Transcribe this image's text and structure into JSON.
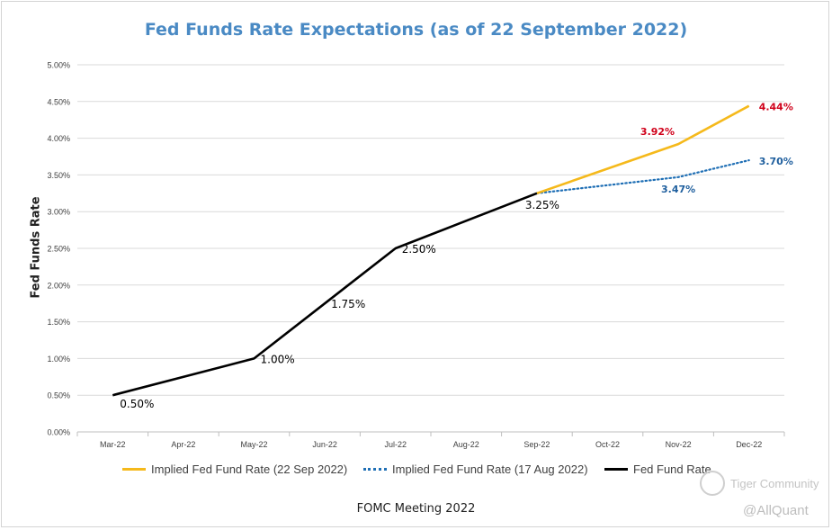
{
  "chart_data": {
    "type": "line",
    "title": "Fed Funds Rate Expectations (as of 22 September 2022)",
    "xlabel": "FOMC Meeting 2022",
    "ylabel": "Fed Funds Rate",
    "categories": [
      "Mar-22",
      "Apr-22",
      "May-22",
      "Jun-22",
      "Jul-22",
      "Aug-22",
      "Sep-22",
      "Oct-22",
      "Nov-22",
      "Dec-22"
    ],
    "ylim": [
      0,
      5
    ],
    "yticks": [
      "0.00%",
      "0.50%",
      "1.00%",
      "1.50%",
      "2.00%",
      "2.50%",
      "3.00%",
      "3.50%",
      "4.00%",
      "4.50%",
      "5.00%"
    ],
    "grid": true,
    "legend_position": "bottom",
    "series": [
      {
        "name": "Implied Fed Fund  Rate (22 Sep 2022)",
        "color": "#f5b91b",
        "style": "solid",
        "points": [
          {
            "x": "Sep-22",
            "y": 3.25
          },
          {
            "x": "Nov-22",
            "y": 3.92
          },
          {
            "x": "Dec-22",
            "y": 4.44
          }
        ]
      },
      {
        "name": "Implied Fed Fund Rate (17 Aug 2022)",
        "color": "#1f6fb5",
        "style": "dotted",
        "points": [
          {
            "x": "Sep-22",
            "y": 3.25
          },
          {
            "x": "Nov-22",
            "y": 3.47
          },
          {
            "x": "Dec-22",
            "y": 3.7
          }
        ]
      },
      {
        "name": "Fed Fund Rate",
        "color": "#000000",
        "style": "solid",
        "points": [
          {
            "x": "Mar-22",
            "y": 0.5
          },
          {
            "x": "May-22",
            "y": 1.0
          },
          {
            "x": "Jul-22",
            "y": 2.5
          },
          {
            "x": "Sep-22",
            "y": 3.25
          }
        ]
      }
    ],
    "data_labels": [
      {
        "text": "0.50%",
        "x": "Mar-22",
        "y": 0.5,
        "color": "#000000",
        "pos": "below-right"
      },
      {
        "text": "1.00%",
        "x": "May-22",
        "y": 1.0,
        "color": "#000000",
        "pos": "right"
      },
      {
        "text": "1.75%",
        "x": "Jun-22",
        "y": 1.75,
        "color": "#000000",
        "pos": "right"
      },
      {
        "text": "2.50%",
        "x": "Jul-22",
        "y": 2.5,
        "color": "#000000",
        "pos": "right"
      },
      {
        "text": "3.25%",
        "x": "Sep-22",
        "y": 3.25,
        "color": "#000000",
        "pos": "below"
      },
      {
        "text": "3.92%",
        "x": "Nov-22",
        "y": 3.92,
        "color": "#d0021b",
        "pos": "above-left"
      },
      {
        "text": "3.47%",
        "x": "Nov-22",
        "y": 3.47,
        "color": "#1f5f9e",
        "pos": "below"
      },
      {
        "text": "4.44%",
        "x": "Dec-22",
        "y": 4.44,
        "color": "#d0021b",
        "pos": "right"
      },
      {
        "text": "3.70%",
        "x": "Dec-22",
        "y": 3.7,
        "color": "#1f5f9e",
        "pos": "right"
      }
    ]
  },
  "watermarks": {
    "community": "Tiger Community",
    "handle": "@AllQuant"
  }
}
